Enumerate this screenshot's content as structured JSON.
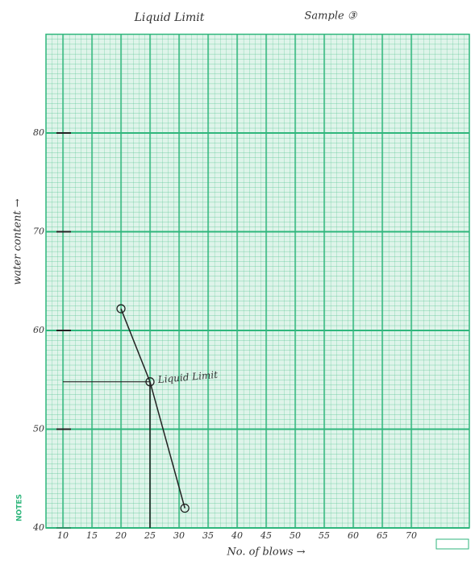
{
  "chart_data": {
    "type": "line",
    "title": "Liquid Limit",
    "subtitle": "Sample ③",
    "x_label": "No. of blows →",
    "y_label": "water content →",
    "side_note": "NOTES",
    "annotation": "Liquid Limit",
    "x": [
      20,
      25,
      31
    ],
    "series": [
      {
        "name": "Liquid Limit",
        "color": "#222222",
        "values": [
          62.2,
          54.8,
          42.0
        ]
      }
    ],
    "xlim": [
      10,
      80
    ],
    "ylim": [
      40,
      90
    ],
    "xticks": [
      10,
      15,
      20,
      25,
      30,
      35,
      40,
      45,
      50,
      55,
      60,
      65,
      70
    ],
    "yticks": [
      40,
      50,
      60,
      70,
      80
    ],
    "grid": true,
    "grid_color": "#2fb67c"
  }
}
